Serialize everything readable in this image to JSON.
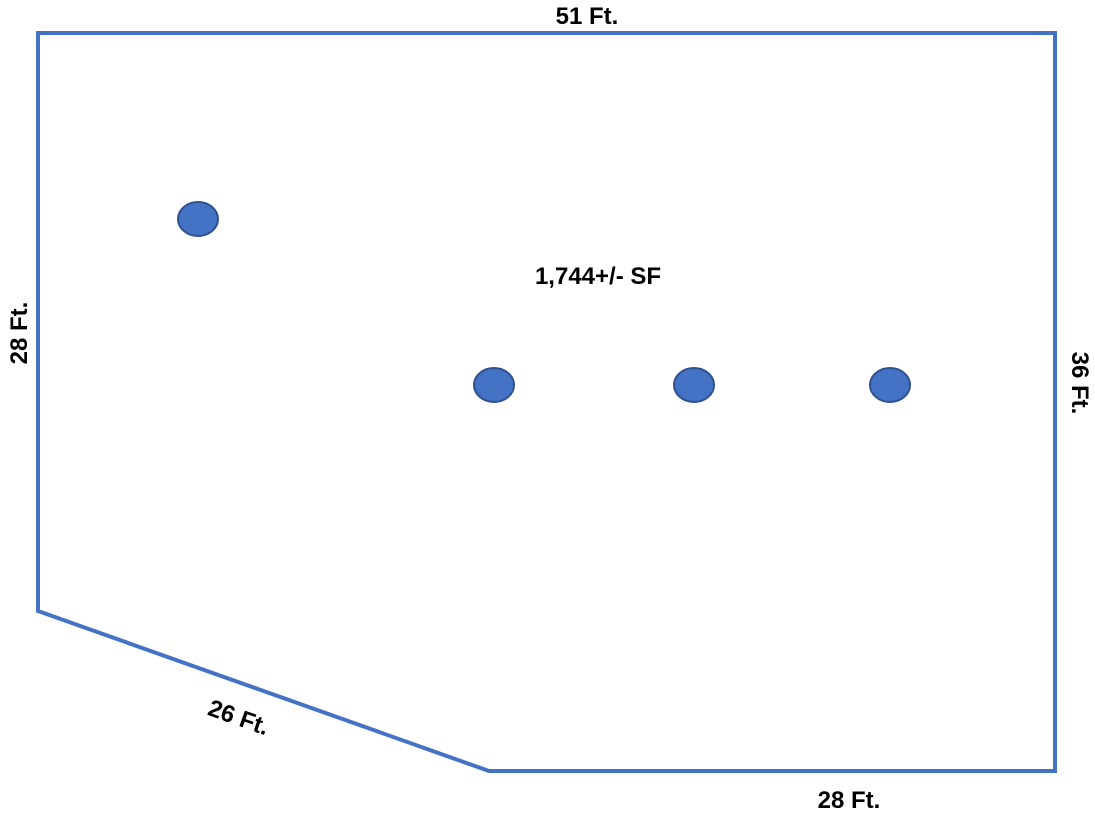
{
  "colors": {
    "outline": "#4472c4",
    "marker_fill": "#4472c4",
    "marker_stroke": "#2f528f",
    "text": "#000000",
    "background": "#ffffff"
  },
  "plan": {
    "area_label": "1,744+/- SF",
    "dimensions": {
      "top": "51 Ft.",
      "left": "28 Ft.",
      "right": "36 Ft.",
      "diagonal": "26 Ft.",
      "bottom": "28 Ft."
    },
    "marker_count": 4
  }
}
